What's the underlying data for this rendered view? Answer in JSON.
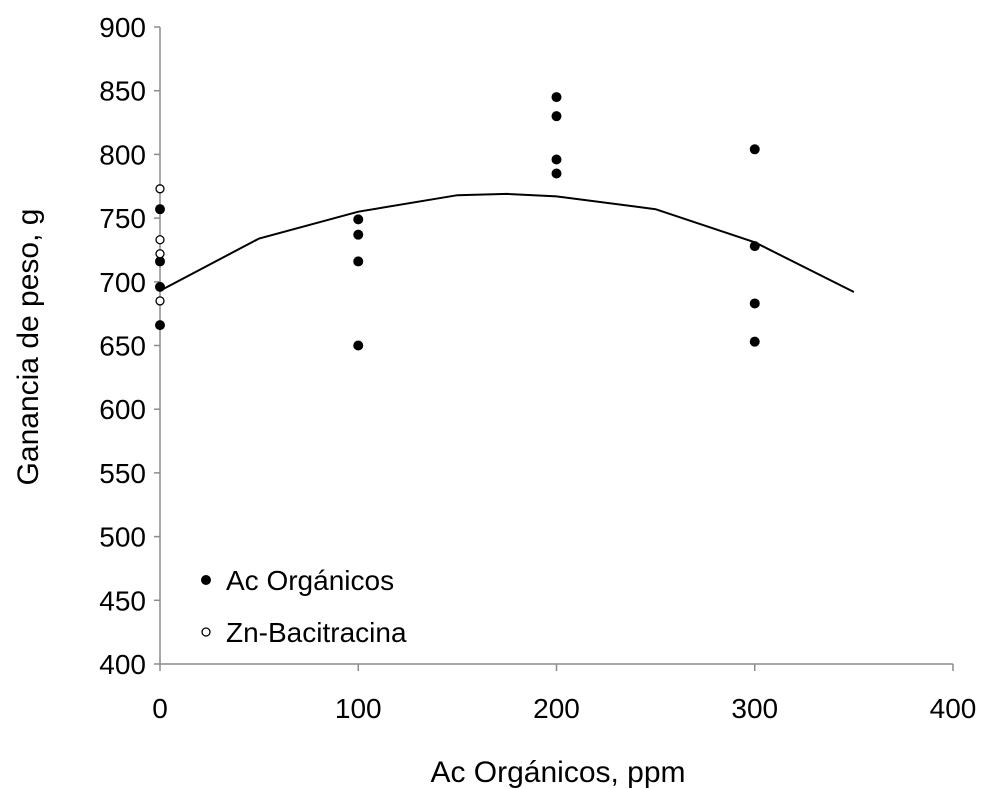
{
  "chart_data": {
    "type": "scatter",
    "title": "",
    "xlabel": "Ac Orgánicos, ppm",
    "ylabel": "Ganancia de peso, g",
    "xlim": [
      0,
      400
    ],
    "ylim": [
      400,
      900
    ],
    "xticks": [
      0,
      100,
      200,
      300,
      400
    ],
    "yticks": [
      400,
      450,
      500,
      550,
      600,
      650,
      700,
      750,
      800,
      850,
      900
    ],
    "grid": false,
    "legend_position": "bottom-left",
    "series": [
      {
        "name": "Ac Orgánicos",
        "marker": "filled-circle",
        "color": "#000000",
        "points": [
          [
            0,
            757
          ],
          [
            0,
            716
          ],
          [
            0,
            696
          ],
          [
            0,
            666
          ],
          [
            100,
            749
          ],
          [
            100,
            737
          ],
          [
            100,
            716
          ],
          [
            100,
            650
          ],
          [
            200,
            845
          ],
          [
            200,
            830
          ],
          [
            200,
            796
          ],
          [
            200,
            785
          ],
          [
            300,
            804
          ],
          [
            300,
            728
          ],
          [
            300,
            683
          ],
          [
            300,
            653
          ]
        ]
      },
      {
        "name": "Zn-Bacitracina",
        "marker": "open-circle",
        "color": "#000000",
        "points": [
          [
            0,
            773
          ],
          [
            0,
            733
          ],
          [
            0,
            722
          ],
          [
            0,
            685
          ]
        ]
      }
    ],
    "fit_curve": {
      "type": "quadratic",
      "x_range": [
        0,
        350
      ],
      "points": [
        [
          0,
          693
        ],
        [
          50,
          734
        ],
        [
          100,
          755
        ],
        [
          150,
          768
        ],
        [
          175,
          769
        ],
        [
          200,
          767
        ],
        [
          250,
          757
        ],
        [
          300,
          731
        ],
        [
          350,
          692
        ]
      ]
    }
  }
}
